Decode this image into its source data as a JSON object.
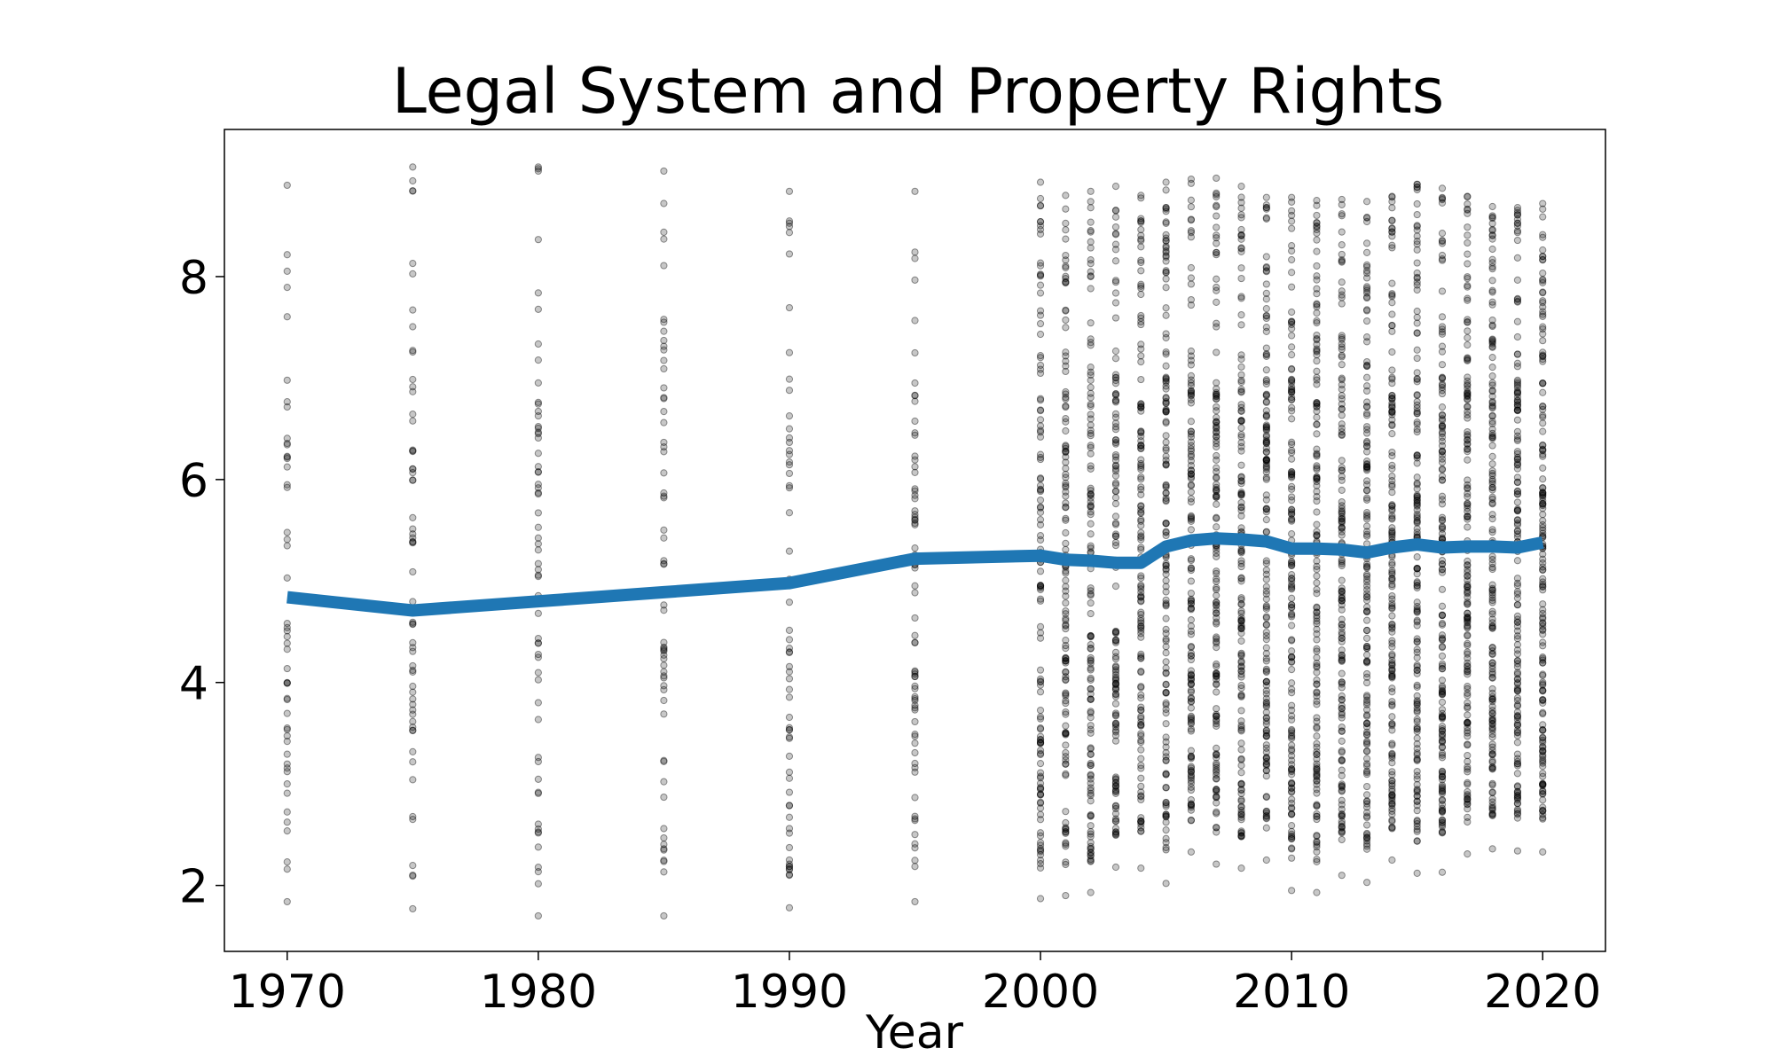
{
  "chart_data": {
    "type": "scatter",
    "title": "Legal System and Property Rights",
    "xlabel": "Year",
    "ylabel": "",
    "xlim": [
      1967.5,
      2022.5
    ],
    "ylim": [
      1.35,
      9.45
    ],
    "grid": false,
    "legend": "none",
    "x_ticks": [
      1970,
      1980,
      1990,
      2000,
      2010,
      2020
    ],
    "x_tick_labels": [
      "1970",
      "1980",
      "1990",
      "2000",
      "2010",
      "2020"
    ],
    "y_ticks": [
      2,
      4,
      6,
      8
    ],
    "y_tick_labels": [
      "2",
      "4",
      "6",
      "8"
    ],
    "series": [
      {
        "kind": "line",
        "color": "#1f77b4",
        "x": [
          1970,
          1975,
          1980,
          1985,
          1990,
          1995,
          2000,
          2001,
          2002,
          2003,
          2004,
          2005,
          2006,
          2007,
          2008,
          2009,
          2010,
          2011,
          2012,
          2013,
          2014,
          2015,
          2016,
          2017,
          2018,
          2019,
          2020
        ],
        "y": [
          4.84,
          4.71,
          4.8,
          4.89,
          4.98,
          5.22,
          5.25,
          5.21,
          5.2,
          5.18,
          5.18,
          5.34,
          5.4,
          5.42,
          5.41,
          5.39,
          5.32,
          5.32,
          5.31,
          5.28,
          5.33,
          5.36,
          5.33,
          5.34,
          5.34,
          5.33,
          5.38
        ]
      },
      {
        "kind": "scatter",
        "color": "#000000",
        "x": [
          1970,
          1975,
          1980,
          1985,
          1990,
          1995,
          2000,
          2001,
          2002,
          2003,
          2004,
          2005,
          2006,
          2007,
          2008,
          2009,
          2010,
          2011,
          2012,
          2013,
          2014,
          2015,
          2016,
          2017,
          2018,
          2019,
          2020
        ],
        "y_min": [
          1.84,
          1.77,
          1.7,
          1.7,
          1.78,
          1.84,
          1.87,
          1.9,
          1.93,
          2.18,
          2.17,
          2.02,
          2.33,
          2.21,
          2.17,
          2.25,
          1.95,
          1.93,
          2.1,
          2.03,
          2.25,
          2.12,
          2.13,
          2.31,
          2.36,
          2.34,
          2.33
        ],
        "y_max": [
          8.9,
          9.08,
          9.08,
          9.04,
          8.84,
          8.84,
          8.93,
          8.8,
          8.84,
          8.89,
          8.8,
          8.93,
          8.96,
          8.97,
          8.89,
          8.78,
          8.78,
          8.75,
          8.76,
          8.74,
          8.79,
          8.91,
          8.87,
          8.79,
          8.69,
          8.68,
          8.72
        ],
        "count": [
          50,
          60,
          60,
          60,
          60,
          70,
          120,
          125,
          125,
          130,
          135,
          140,
          140,
          145,
          145,
          150,
          150,
          150,
          150,
          150,
          155,
          155,
          160,
          160,
          160,
          160,
          165
        ]
      }
    ]
  }
}
